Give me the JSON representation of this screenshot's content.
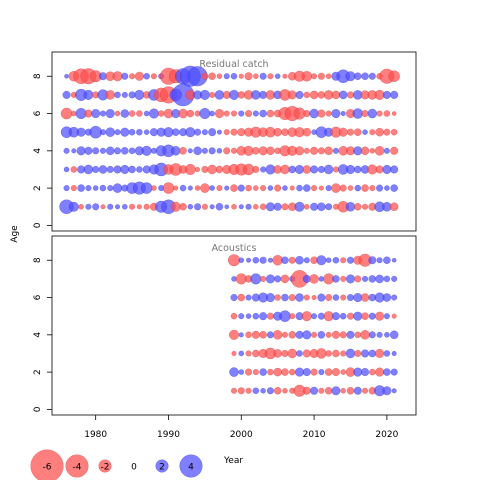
{
  "chart_data": {
    "type": "scatter",
    "subtype": "bubble-residuals",
    "x_label": "Year",
    "y_label": "Age",
    "x_ticks": [
      1980,
      1990,
      2000,
      2010,
      2020
    ],
    "y_ticks": [
      0,
      2,
      4,
      6,
      8
    ],
    "xlim": [
      1974,
      2024
    ],
    "ylim": [
      -0.3,
      9.3
    ],
    "colors": {
      "positive": "#4d4dff",
      "negative": "#ff4d4d"
    },
    "panels": [
      {
        "title": "Residual catch",
        "years": [
          1976,
          2021
        ],
        "ages": [
          1,
          8
        ],
        "rows": {
          "8": [
            0.3,
            -1.5,
            -2.5,
            -2.6,
            -1.8,
            1.0,
            -1.3,
            -1.4,
            0.8,
            -0.6,
            -1.2,
            0.7,
            -0.6,
            0.6,
            -2.8,
            -2.2,
            2.6,
            3.6,
            3.4,
            -0.8,
            -0.9,
            -0.5,
            0.6,
            0.7,
            -0.4,
            -1.0,
            -0.5,
            0.8,
            -0.6,
            0.5,
            -0.4,
            -1.1,
            -1.6,
            -1.5,
            -0.6,
            -0.8,
            -0.5,
            1.2,
            2.1,
            1.4,
            0.9,
            0.9,
            0.8,
            -0.7,
            -2.4,
            -1.7
          ],
          "7": [
            1.0,
            -0.6,
            1.8,
            1.4,
            -0.8,
            1.6,
            -1.3,
            0.7,
            0.6,
            0.8,
            1.4,
            -0.9,
            1.7,
            -2.3,
            -2.8,
            1.9,
            3.9,
            -1.4,
            1.2,
            1.4,
            -0.6,
            1.3,
            -1.0,
            1.4,
            -0.9,
            -1.3,
            1.3,
            1.0,
            -1.3,
            1.1,
            -1.7,
            -1.2,
            1.0,
            -0.7,
            -1.1,
            -0.9,
            -1.3,
            -1.1,
            1.1,
            -0.8,
            1.3,
            -1.2,
            -1.3,
            -1.4,
            1.0,
            1.0
          ],
          "6": [
            -1.7,
            -0.5,
            1.6,
            -1.0,
            1.2,
            0.6,
            1.2,
            -0.5,
            1.1,
            -0.7,
            -0.7,
            0.5,
            1.4,
            -0.7,
            -1.3,
            1.2,
            -1.3,
            -0.9,
            -0.6,
            1.6,
            0.5,
            -1.2,
            -0.6,
            -0.6,
            0.6,
            -0.8,
            0.6,
            0.9,
            -0.9,
            -0.9,
            -2.0,
            -2.4,
            -1.8,
            -0.8,
            1.3,
            -1.0,
            -0.6,
            1.2,
            0.4,
            -1.2,
            1.5,
            -0.8,
            1.3,
            -0.6,
            -0.7,
            -0.3
          ],
          "5": [
            1.7,
            1.5,
            1.2,
            0.8,
            1.9,
            0.6,
            1.3,
            0.6,
            1.2,
            0.7,
            0.7,
            0.5,
            1.0,
            1.2,
            1.4,
            0.9,
            1.0,
            1.4,
            0.8,
            0.6,
            1.0,
            0.4,
            -0.6,
            -0.8,
            -1.0,
            -1.2,
            -1.6,
            -1.3,
            -1.5,
            -1.1,
            -0.9,
            -1.3,
            -1.4,
            -1.1,
            0.5,
            1.7,
            1.2,
            -1.6,
            -1.2,
            -0.8,
            -0.9,
            0.5,
            -0.6,
            -1.1,
            -0.8,
            -0.7
          ],
          "4": [
            0.6,
            0.4,
            1.2,
            1.0,
            0.8,
            0.6,
            1.1,
            0.8,
            0.9,
            0.7,
            1.2,
            1.4,
            0.6,
            1.6,
            1.9,
            1.3,
            -0.9,
            0.4,
            1.1,
            0.6,
            0.8,
            0.5,
            -0.8,
            -0.6,
            -1.3,
            -1.4,
            -0.9,
            -1.2,
            -1.1,
            -0.7,
            -1.6,
            -1.4,
            -1.2,
            -0.6,
            -1.0,
            -0.8,
            -1.1,
            0.6,
            -1.3,
            -1.2,
            1.2,
            -1.1,
            -0.5,
            -1.3,
            0.6,
            -1.0
          ],
          "3": [
            0.5,
            -0.7,
            1.0,
            1.3,
            0.8,
            1.1,
            0.8,
            1.0,
            1.2,
            0.9,
            0.7,
            1.0,
            1.4,
            2.1,
            -1.5,
            -1.9,
            -1.1,
            -1.6,
            -0.4,
            -0.8,
            -1.3,
            -0.9,
            -1.2,
            -1.6,
            -1.8,
            -1.7,
            -0.8,
            0.6,
            1.4,
            -1.1,
            -1.3,
            0.9,
            1.2,
            -1.1,
            1.0,
            0.8,
            1.3,
            -0.6,
            1.5,
            1.2,
            0.9,
            1.1,
            -1.4,
            -1.0,
            1.2,
            1.0
          ],
          "2": [
            0.6,
            -0.6,
            0.9,
            0.6,
            0.5,
            0.7,
            0.6,
            1.3,
            0.8,
            1.7,
            2.0,
            1.7,
            -0.5,
            0.6,
            -1.7,
            -0.4,
            0.7,
            0.4,
            -0.5,
            -1.3,
            0.5,
            -0.6,
            0.4,
            -0.9,
            0.8,
            -0.7,
            -0.5,
            -0.6,
            0.5,
            -0.8,
            0.5,
            -0.4,
            0.7,
            0.9,
            -0.6,
            -0.4,
            0.6,
            -1.3,
            -0.8,
            -0.5,
            0.7,
            -0.9,
            -0.6,
            0.8,
            0.5,
            0.9
          ],
          "1": [
            2.3,
            1.4,
            -0.5,
            0.6,
            0.8,
            -0.4,
            0.6,
            0.4,
            0.5,
            -0.6,
            -0.4,
            -0.6,
            -1.0,
            1.8,
            2.3,
            -1.4,
            -0.9,
            0.5,
            0.8,
            -0.6,
            0.4,
            0.9,
            0.3,
            -0.5,
            0.4,
            0.6,
            -0.5,
            -0.7,
            1.2,
            1.0,
            -0.8,
            -1.1,
            1.4,
            -0.5,
            1.0,
            1.1,
            0.8,
            -0.6,
            -1.7,
            1.3,
            -0.9,
            -0.6,
            -1.0,
            1.5,
            1.3,
            -1.1
          ]
        }
      },
      {
        "title": "Acoustics",
        "years": [
          1999,
          2021
        ],
        "ages": [
          1,
          8
        ],
        "rows": {
          "8": [
            -1.8,
            0.5,
            0.4,
            0.7,
            0.8,
            0.4,
            -1.5,
            0.9,
            -0.8,
            1.1,
            0.6,
            -0.9,
            1.4,
            0.5,
            0.7,
            -0.6,
            0.8,
            -1.2,
            -2.0,
            1.0,
            0.6,
            0.9,
            0.3
          ],
          "7": [
            0.5,
            -1.6,
            -0.9,
            1.6,
            -0.6,
            1.2,
            0.8,
            -1.1,
            0.6,
            -2.9,
            1.0,
            -1.3,
            0.5,
            -1.6,
            0.9,
            -0.6,
            1.2,
            -0.8,
            0.6,
            0.9,
            1.1,
            0.7,
            0.6
          ],
          "6": [
            0.8,
            -0.9,
            0.6,
            1.0,
            1.4,
            1.2,
            -0.7,
            0.9,
            -0.8,
            1.1,
            -0.6,
            -0.4,
            1.0,
            -0.8,
            0.7,
            -0.6,
            0.8,
            1.2,
            -1.1,
            0.9,
            1.4,
            1.1,
            0.6
          ],
          "5": [
            -0.7,
            0.6,
            0.5,
            0.7,
            1.0,
            -0.8,
            1.2,
            1.7,
            -0.6,
            1.0,
            -1.4,
            0.6,
            0.8,
            -1.4,
            1.0,
            0.7,
            -0.8,
            1.2,
            -0.9,
            0.8,
            -1.2,
            0.6,
            -0.4
          ],
          "4": [
            -1.4,
            0.4,
            -0.7,
            -1.0,
            -0.9,
            0.8,
            -1.3,
            -0.6,
            -0.9,
            1.0,
            1.2,
            -0.6,
            0.9,
            -0.6,
            -1.0,
            -0.8,
            1.0,
            -0.7,
            -1.3,
            0.8,
            0.6,
            0.5,
            1.1
          ],
          "3": [
            -0.4,
            0.5,
            -0.6,
            -0.9,
            -1.2,
            -1.7,
            -1.1,
            -0.8,
            -1.3,
            0.7,
            -1.0,
            -1.2,
            -1.5,
            -0.7,
            -0.9,
            -0.6,
            1.3,
            -0.8,
            1.0,
            0.9,
            -1.2,
            0.7,
            0.4
          ],
          "2": [
            1.3,
            0.5,
            -0.8,
            -0.6,
            0.9,
            -0.7,
            -1.1,
            -0.9,
            -0.7,
            1.2,
            1.0,
            -0.8,
            0.6,
            -0.9,
            -1.0,
            -0.5,
            -1.3,
            1.2,
            1.0,
            -0.7,
            -1.2,
            0.9,
            0.8
          ],
          "1": [
            -0.6,
            -0.8,
            -0.6,
            0.7,
            0.5,
            0.8,
            -0.9,
            -0.5,
            -0.6,
            -1.8,
            -1.0,
            1.0,
            -0.6,
            -0.9,
            1.2,
            -0.5,
            -0.9,
            1.0,
            -0.6,
            -0.9,
            1.6,
            1.2,
            0.4
          ]
        }
      }
    ],
    "legend": {
      "values": [
        -6,
        -4,
        -2,
        0,
        2,
        4
      ],
      "labels": [
        "-6",
        "-4",
        "-2",
        "0",
        "2",
        "4"
      ]
    }
  }
}
